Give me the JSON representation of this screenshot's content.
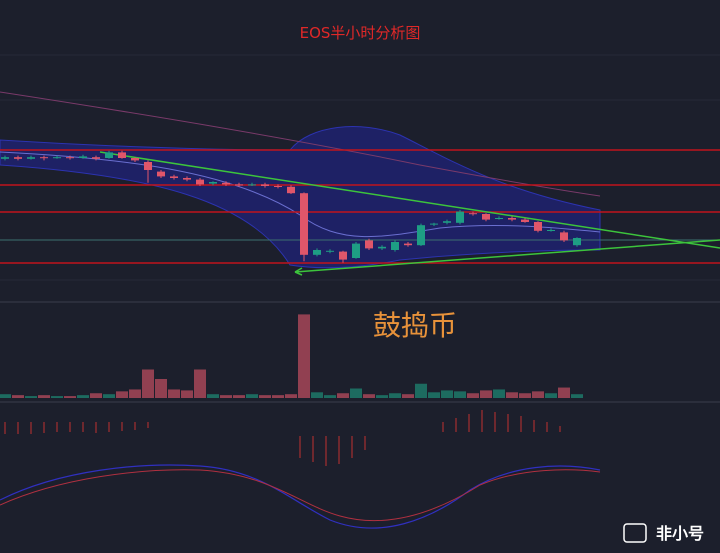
{
  "chart_data": {
    "type": "candlestick",
    "title": "EOS半小时分析图",
    "watermark": "鼓捣币",
    "logo": "非小号",
    "up_color": "#1e9e84",
    "down_color": "#e0566a",
    "ylim": [
      0,
      100
    ],
    "open": [
      82,
      83,
      82,
      83,
      82.5,
      83,
      82.5,
      83,
      82.5,
      86,
      82.5,
      80,
      74,
      71,
      70,
      69,
      66.5,
      67,
      66,
      65.5,
      66,
      65,
      64.5,
      60.5,
      22,
      24,
      24,
      20,
      31,
      26,
      25,
      29,
      28,
      41,
      42,
      42,
      48,
      47.5,
      44.5,
      45,
      44,
      42.5,
      37,
      36,
      28
    ],
    "high": [
      84,
      84,
      84,
      84,
      84,
      84,
      84.5,
      84,
      87,
      87,
      83,
      81,
      75,
      72,
      71,
      70,
      68,
      68,
      67,
      67,
      67,
      66,
      65.5,
      61,
      26,
      25.5,
      24.5,
      30,
      32,
      28,
      31,
      30,
      41.5,
      42,
      44,
      50,
      49,
      48,
      46,
      46,
      45,
      43,
      38.5,
      37,
      33
    ],
    "low": [
      81,
      81,
      81.5,
      81,
      82,
      81.5,
      82,
      81,
      82,
      82,
      80,
      67,
      70,
      69,
      68,
      65,
      65.5,
      65,
      64.5,
      65,
      64,
      63.5,
      60,
      18,
      21,
      23,
      17,
      19.5,
      25,
      25,
      24,
      27,
      27.5,
      40,
      41,
      41,
      46.5,
      43,
      44,
      43,
      42,
      36,
      36.5,
      30,
      27
    ],
    "close": [
      83,
      82,
      83,
      82.5,
      83,
      82.5,
      83.5,
      82,
      86,
      82.5,
      81,
      75,
      71,
      70,
      69,
      66,
      67.5,
      66,
      65.5,
      66,
      65,
      64.5,
      60.5,
      22,
      25,
      24.5,
      19,
      29,
      26,
      27,
      30,
      28,
      40.5,
      41.5,
      43,
      49,
      47.5,
      44,
      45,
      44,
      42.5,
      37,
      37.5,
      31,
      32.5
    ],
    "levels": [
      87.5,
      65.6,
      48.75,
      16.9
    ],
    "level_color": "#c0141c",
    "volume_ylim": [
      0,
      100
    ],
    "volume": [
      4,
      3,
      2,
      3,
      2,
      2,
      3,
      5,
      4,
      7,
      9,
      30,
      20,
      9,
      8,
      30,
      4,
      3,
      3,
      4,
      3,
      3,
      4,
      88,
      6,
      3,
      5,
      10,
      4,
      3,
      5,
      4,
      15,
      6,
      8,
      7,
      5,
      8,
      9,
      6,
      5,
      7,
      5,
      11,
      4
    ]
  }
}
